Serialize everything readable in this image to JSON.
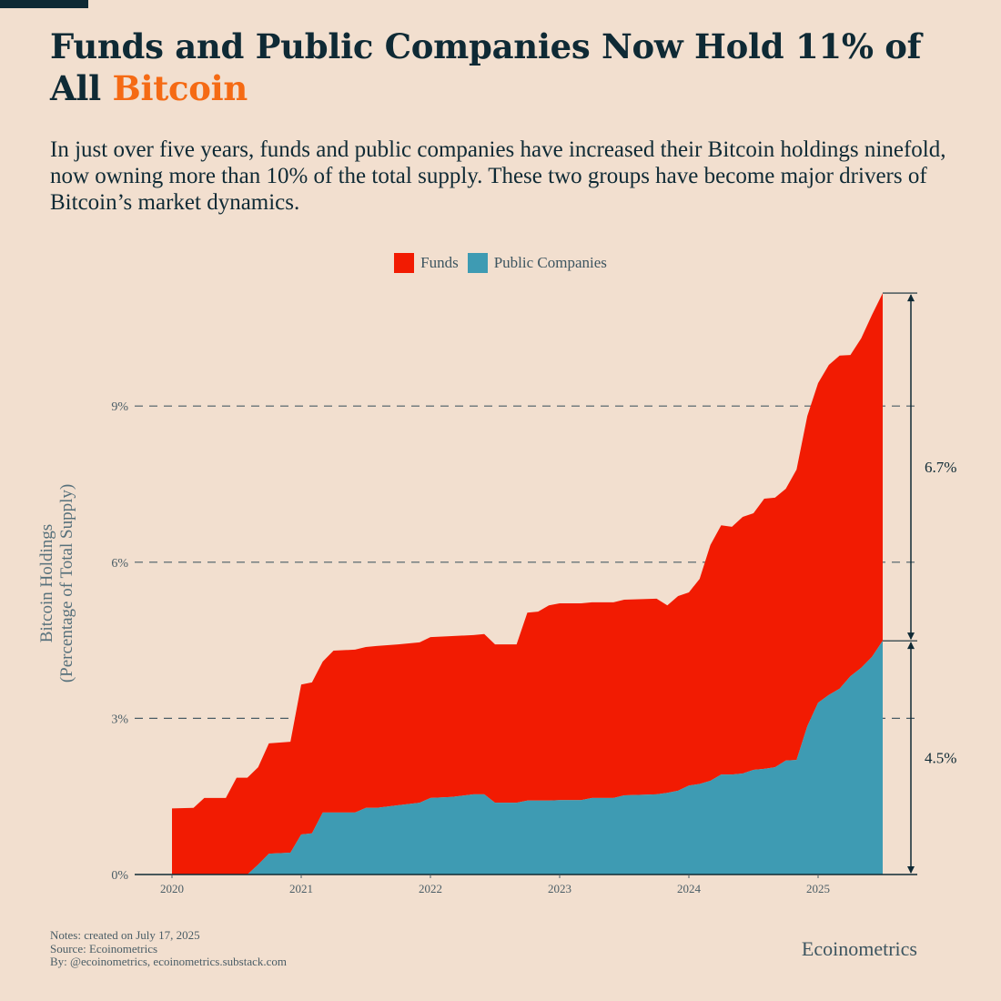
{
  "header": {
    "title_main": "Funds and Public Companies Now Hold 11% of All ",
    "title_highlight": "Bitcoin",
    "subtitle": "In just over five years, funds and public companies have increased their Bitcoin holdings ninefold, now owning more than 10% of the total supply. These two groups have become major drivers of Bitcoin’s market dynamics."
  },
  "colors": {
    "background": "#f2dfcf",
    "title": "#0f2a35",
    "highlight": "#f56a14",
    "funds": "#f21b02",
    "public_companies": "#3e9bb3"
  },
  "chart_data": {
    "type": "area",
    "stacked": true,
    "title": "Funds and Public Companies Now Hold 11% of All Bitcoin",
    "ylabel_line1": "Bitcoin Holdings",
    "ylabel_line2": "(Percentage of Total Supply)",
    "xlabel": "",
    "ylim": [
      0,
      11.2
    ],
    "yticks": [
      0,
      3,
      6,
      9
    ],
    "ytick_labels": [
      "0%",
      "3%",
      "6%",
      "9%"
    ],
    "xticks": [
      2020,
      2021,
      2022,
      2023,
      2024,
      2025
    ],
    "xtick_labels": [
      "2020",
      "2021",
      "2022",
      "2023",
      "2024",
      "2025"
    ],
    "xlim": [
      2020,
      2025.5
    ],
    "grid": "horizontal dashed",
    "legend_position": "top-center",
    "legend": [
      "Funds",
      "Public Companies"
    ],
    "x_months_since_jan_2020": [
      0,
      2,
      3,
      5,
      6,
      7,
      8,
      9,
      11,
      12,
      13,
      14,
      15,
      17,
      18,
      19,
      21,
      23,
      24,
      26,
      28,
      29,
      30,
      32,
      33,
      34,
      35,
      36,
      38,
      39,
      41,
      42,
      45,
      46,
      47,
      48,
      49,
      50,
      51,
      52,
      53,
      54,
      55,
      56,
      57,
      58,
      59,
      60,
      61,
      62,
      63,
      64,
      65,
      66
    ],
    "series": [
      {
        "name": "Public Companies",
        "values": [
          0,
          0,
          0,
          0,
          0,
          0,
          0.19,
          0.4,
          0.42,
          0.77,
          0.79,
          1.19,
          1.19,
          1.19,
          1.28,
          1.28,
          1.33,
          1.38,
          1.47,
          1.49,
          1.54,
          1.54,
          1.38,
          1.38,
          1.42,
          1.42,
          1.42,
          1.43,
          1.43,
          1.47,
          1.47,
          1.52,
          1.54,
          1.57,
          1.61,
          1.71,
          1.74,
          1.8,
          1.92,
          1.92,
          1.94,
          2.01,
          2.03,
          2.06,
          2.19,
          2.2,
          2.85,
          3.3,
          3.45,
          3.57,
          3.81,
          3.97,
          4.18,
          4.49
        ]
      },
      {
        "name": "Funds",
        "values": [
          1.27,
          1.28,
          1.47,
          1.47,
          1.86,
          1.86,
          1.87,
          2.12,
          2.13,
          2.88,
          2.9,
          2.9,
          3.11,
          3.13,
          3.09,
          3.11,
          3.09,
          3.08,
          3.09,
          3.09,
          3.06,
          3.08,
          3.04,
          3.04,
          3.61,
          3.63,
          3.75,
          3.78,
          3.78,
          3.76,
          3.76,
          3.76,
          3.76,
          3.6,
          3.74,
          3.71,
          3.94,
          4.53,
          4.79,
          4.76,
          4.93,
          4.93,
          5.19,
          5.18,
          5.22,
          5.58,
          5.96,
          6.14,
          6.34,
          6.4,
          6.17,
          6.33,
          6.57,
          6.68
        ]
      }
    ],
    "annotations": [
      {
        "label": "6.7%",
        "from": 4.49,
        "to": 11.17
      },
      {
        "label": "4.5%",
        "from": 0,
        "to": 4.49
      }
    ]
  },
  "footer": {
    "notes": "Notes: created on July 17, 2025",
    "source": "Source: Ecoinometrics",
    "by": "By: @ecoinometrics, ecoinometrics.substack.com",
    "brand": "Ecoinometrics"
  }
}
